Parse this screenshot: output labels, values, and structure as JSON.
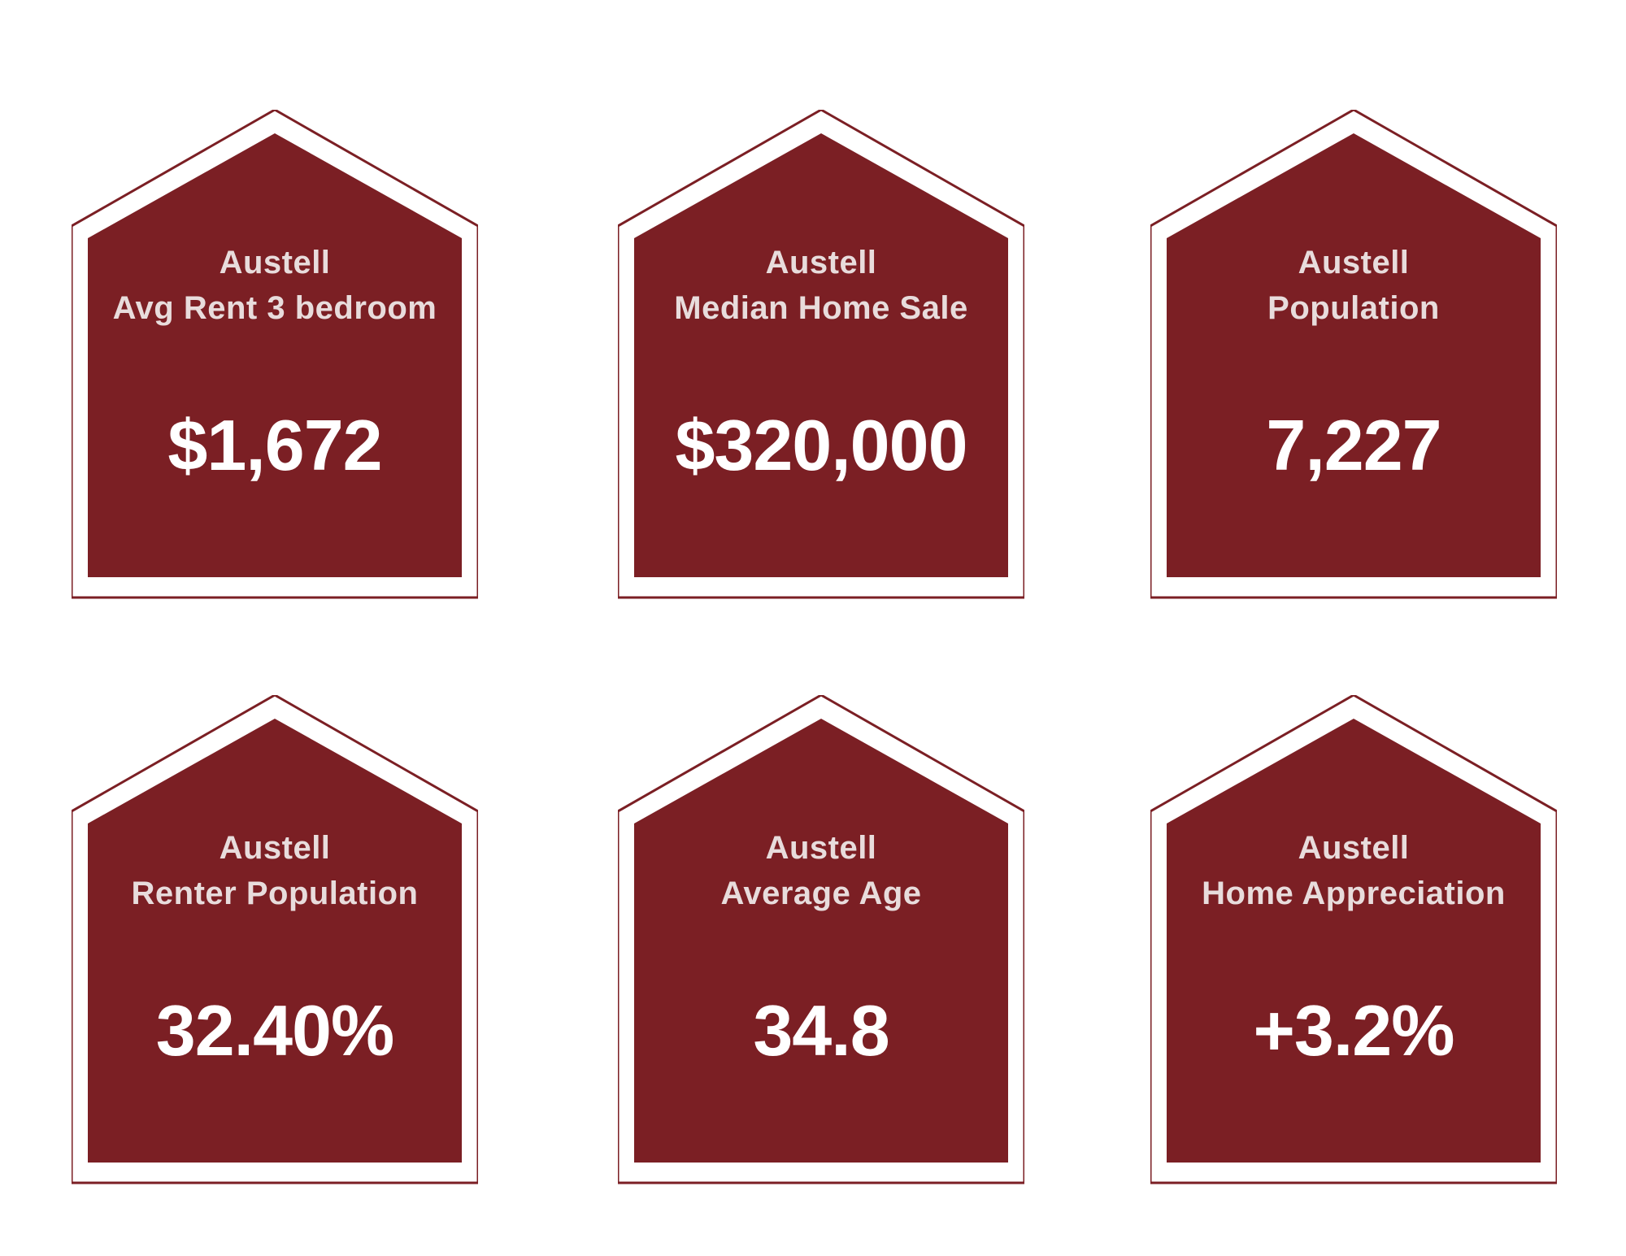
{
  "colors": {
    "card_fill": "#7b1f24",
    "card_outline": "#7b1f24",
    "label_text": "#e8dcdc",
    "value_text": "#ffffff",
    "background": "#ffffff"
  },
  "cards": [
    {
      "city": "Austell",
      "metric": "Avg Rent 3 bedroom",
      "value": "$1,672"
    },
    {
      "city": "Austell",
      "metric": "Median Home Sale",
      "value": "$320,000"
    },
    {
      "city": "Austell",
      "metric": "Population",
      "value": "7,227"
    },
    {
      "city": "Austell",
      "metric": "Renter Population",
      "value": "32.40%"
    },
    {
      "city": "Austell",
      "metric": "Average Age",
      "value": "34.8"
    },
    {
      "city": "Austell",
      "metric": "Home Appreciation",
      "value": "+3.2%"
    }
  ]
}
